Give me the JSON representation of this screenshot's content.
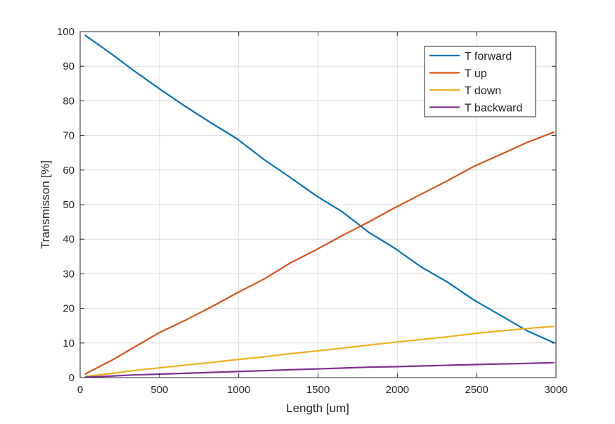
{
  "chart_data": {
    "type": "line",
    "xlabel": "Length [um]",
    "ylabel": "Transmisson [%]",
    "xlim": [
      0,
      3000
    ],
    "ylim": [
      0,
      100
    ],
    "xticks": [
      0,
      500,
      1000,
      1500,
      2000,
      2500,
      3000
    ],
    "yticks": [
      0,
      10,
      20,
      30,
      40,
      50,
      60,
      70,
      80,
      90,
      100
    ],
    "grid": true,
    "legend_position": "top-right",
    "x": [
      30,
      200,
      330,
      500,
      660,
      830,
      990,
      1160,
      1320,
      1490,
      1650,
      1820,
      1980,
      2150,
      2320,
      2480,
      2650,
      2820,
      2990
    ],
    "series": [
      {
        "name": "T forward",
        "color": "#0072BD",
        "values": [
          99,
          93.5,
          89,
          83.5,
          78.5,
          73.5,
          69,
          63,
          58,
          52.5,
          48,
          42,
          37.5,
          32,
          27.5,
          22.5,
          18,
          13.5,
          10
        ]
      },
      {
        "name": "T up",
        "color": "#D95319",
        "values": [
          1,
          5,
          8.5,
          13,
          16.5,
          20.5,
          24.5,
          28.5,
          33,
          37,
          41,
          45,
          49,
          53,
          57,
          61,
          64.5,
          68,
          71
        ]
      },
      {
        "name": "T down",
        "color": "#EDB120",
        "values": [
          0.3,
          1.2,
          2,
          2.8,
          3.6,
          4.4,
          5.2,
          6,
          6.9,
          7.7,
          8.5,
          9.4,
          10.2,
          11,
          11.8,
          12.7,
          13.5,
          14.2,
          14.8
        ]
      },
      {
        "name": "T backward",
        "color": "#7E2F8E",
        "values": [
          0.1,
          0.45,
          0.75,
          1.0,
          1.25,
          1.5,
          1.75,
          2.0,
          2.25,
          2.5,
          2.75,
          3.0,
          3.15,
          3.35,
          3.55,
          3.75,
          3.95,
          4.1,
          4.3
        ]
      }
    ]
  }
}
